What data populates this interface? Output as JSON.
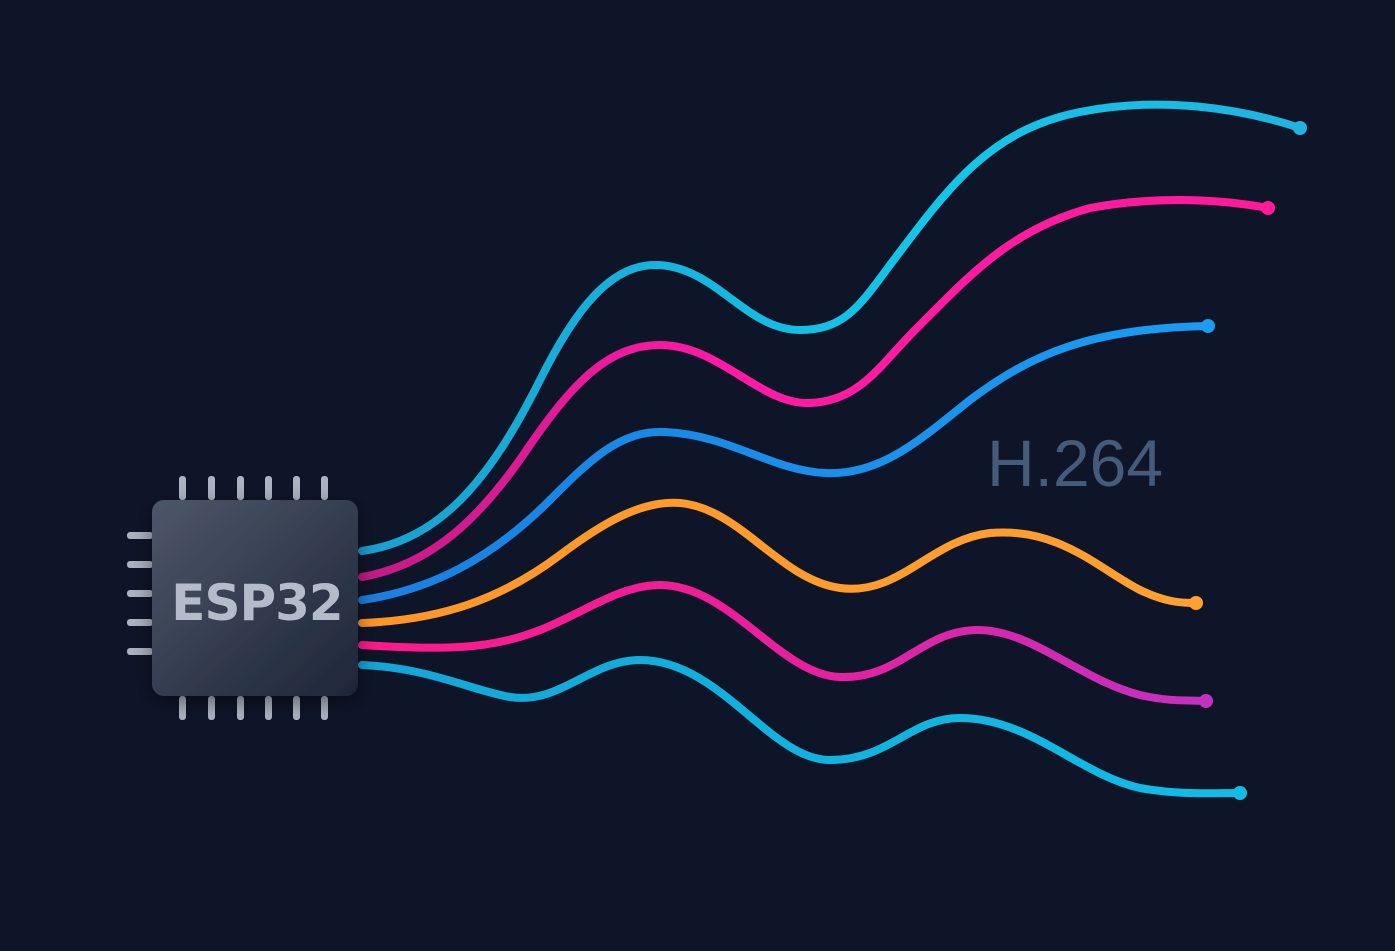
{
  "chip": {
    "label": "ESP32",
    "body_color": "#2b3447",
    "label_color": "#b4bccb",
    "pin_color": "#aab3c2"
  },
  "codec": {
    "label": "H.264",
    "color": "#465a7a"
  },
  "background_color": "#0e1528",
  "streams": [
    {
      "color": "#1fb4e0"
    },
    {
      "color": "#ff1aa6"
    },
    {
      "color": "#1a8fee"
    },
    {
      "color": "#ff9a28"
    },
    {
      "color": "#f0209e"
    },
    {
      "color": "#12b3de"
    }
  ]
}
